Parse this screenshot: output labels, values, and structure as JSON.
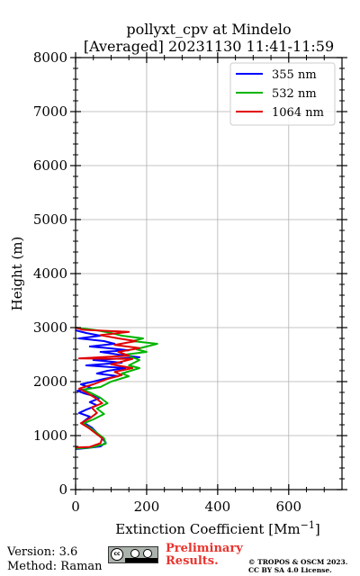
{
  "chart_data": {
    "type": "line",
    "title": "pollyxt_cpv at Mindelo",
    "subtitle": "[Averaged] 20231130 11:41-11:59",
    "xlabel": "Extinction Coefficient [Mm",
    "xlabel_sup": "−1",
    "xlabel_close": "]",
    "ylabel": "Height (m)",
    "xlim": [
      0,
      750
    ],
    "ylim": [
      0,
      8000
    ],
    "xticks": [
      0,
      200,
      400,
      600
    ],
    "yticks": [
      0,
      1000,
      2000,
      3000,
      4000,
      5000,
      6000,
      7000,
      8000
    ],
    "xtick_labels": [
      "0",
      "200",
      "400",
      "600"
    ],
    "ytick_labels": [
      "0",
      "1000",
      "2000",
      "3000",
      "4000",
      "5000",
      "6000",
      "7000",
      "8000"
    ],
    "grid": true,
    "legend_position": "top-right",
    "series": [
      {
        "name": "355 nm",
        "color": "#0000ff",
        "points": [
          [
            0,
            750
          ],
          [
            35,
            770
          ],
          [
            70,
            800
          ],
          [
            85,
            870
          ],
          [
            75,
            950
          ],
          [
            60,
            1050
          ],
          [
            45,
            1150
          ],
          [
            20,
            1250
          ],
          [
            40,
            1350
          ],
          [
            10,
            1420
          ],
          [
            30,
            1480
          ],
          [
            60,
            1560
          ],
          [
            40,
            1620
          ],
          [
            70,
            1700
          ],
          [
            25,
            1780
          ],
          [
            5,
            1830
          ],
          [
            45,
            1880
          ],
          [
            15,
            1950
          ],
          [
            50,
            2000
          ],
          [
            80,
            2050
          ],
          [
            120,
            2100
          ],
          [
            60,
            2150
          ],
          [
            90,
            2200
          ],
          [
            140,
            2250
          ],
          [
            30,
            2300
          ],
          [
            130,
            2350
          ],
          [
            50,
            2400
          ],
          [
            180,
            2450
          ],
          [
            120,
            2500
          ],
          [
            70,
            2550
          ],
          [
            150,
            2580
          ],
          [
            90,
            2620
          ],
          [
            40,
            2650
          ],
          [
            110,
            2700
          ],
          [
            80,
            2750
          ],
          [
            10,
            2800
          ],
          [
            70,
            2850
          ],
          [
            30,
            2900
          ],
          [
            0,
            2950
          ]
        ]
      },
      {
        "name": "532 nm",
        "color": "#00b400",
        "points": [
          [
            0,
            760
          ],
          [
            45,
            780
          ],
          [
            85,
            850
          ],
          [
            80,
            950
          ],
          [
            60,
            1050
          ],
          [
            40,
            1150
          ],
          [
            20,
            1220
          ],
          [
            50,
            1300
          ],
          [
            80,
            1400
          ],
          [
            60,
            1500
          ],
          [
            90,
            1600
          ],
          [
            70,
            1700
          ],
          [
            40,
            1800
          ],
          [
            20,
            1850
          ],
          [
            70,
            1900
          ],
          [
            100,
            2000
          ],
          [
            150,
            2100
          ],
          [
            130,
            2150
          ],
          [
            180,
            2250
          ],
          [
            150,
            2300
          ],
          [
            180,
            2400
          ],
          [
            140,
            2500
          ],
          [
            200,
            2550
          ],
          [
            170,
            2600
          ],
          [
            230,
            2700
          ],
          [
            160,
            2750
          ],
          [
            190,
            2800
          ],
          [
            130,
            2850
          ],
          [
            100,
            2900
          ],
          [
            60,
            2950
          ],
          [
            0,
            3000
          ]
        ]
      },
      {
        "name": "1064 nm",
        "color": "#e00000",
        "points": [
          [
            0,
            780
          ],
          [
            40,
            790
          ],
          [
            70,
            860
          ],
          [
            75,
            950
          ],
          [
            55,
            1050
          ],
          [
            35,
            1150
          ],
          [
            15,
            1230
          ],
          [
            40,
            1320
          ],
          [
            60,
            1420
          ],
          [
            45,
            1520
          ],
          [
            75,
            1600
          ],
          [
            55,
            1700
          ],
          [
            30,
            1800
          ],
          [
            10,
            1870
          ],
          [
            50,
            1950
          ],
          [
            90,
            2050
          ],
          [
            130,
            2120
          ],
          [
            110,
            2180
          ],
          [
            160,
            2250
          ],
          [
            100,
            2320
          ],
          [
            160,
            2420
          ],
          [
            10,
            2430
          ],
          [
            150,
            2480
          ],
          [
            120,
            2550
          ],
          [
            180,
            2620
          ],
          [
            110,
            2680
          ],
          [
            170,
            2750
          ],
          [
            120,
            2800
          ],
          [
            70,
            2860
          ],
          [
            150,
            2920
          ],
          [
            20,
            2960
          ],
          [
            0,
            3000
          ]
        ]
      }
    ]
  },
  "footer": {
    "version": "Version: 3.6",
    "method": "Method: Raman",
    "preliminary_line1": "Preliminary",
    "preliminary_line2": "Results.",
    "copyright_line1": "© TROPOS & OSCM 2023.",
    "copyright_line2": "CC BY SA 4.0 License."
  },
  "license_badge": {
    "icon": "cc-by-sa-icon",
    "cc_text": "cc"
  }
}
